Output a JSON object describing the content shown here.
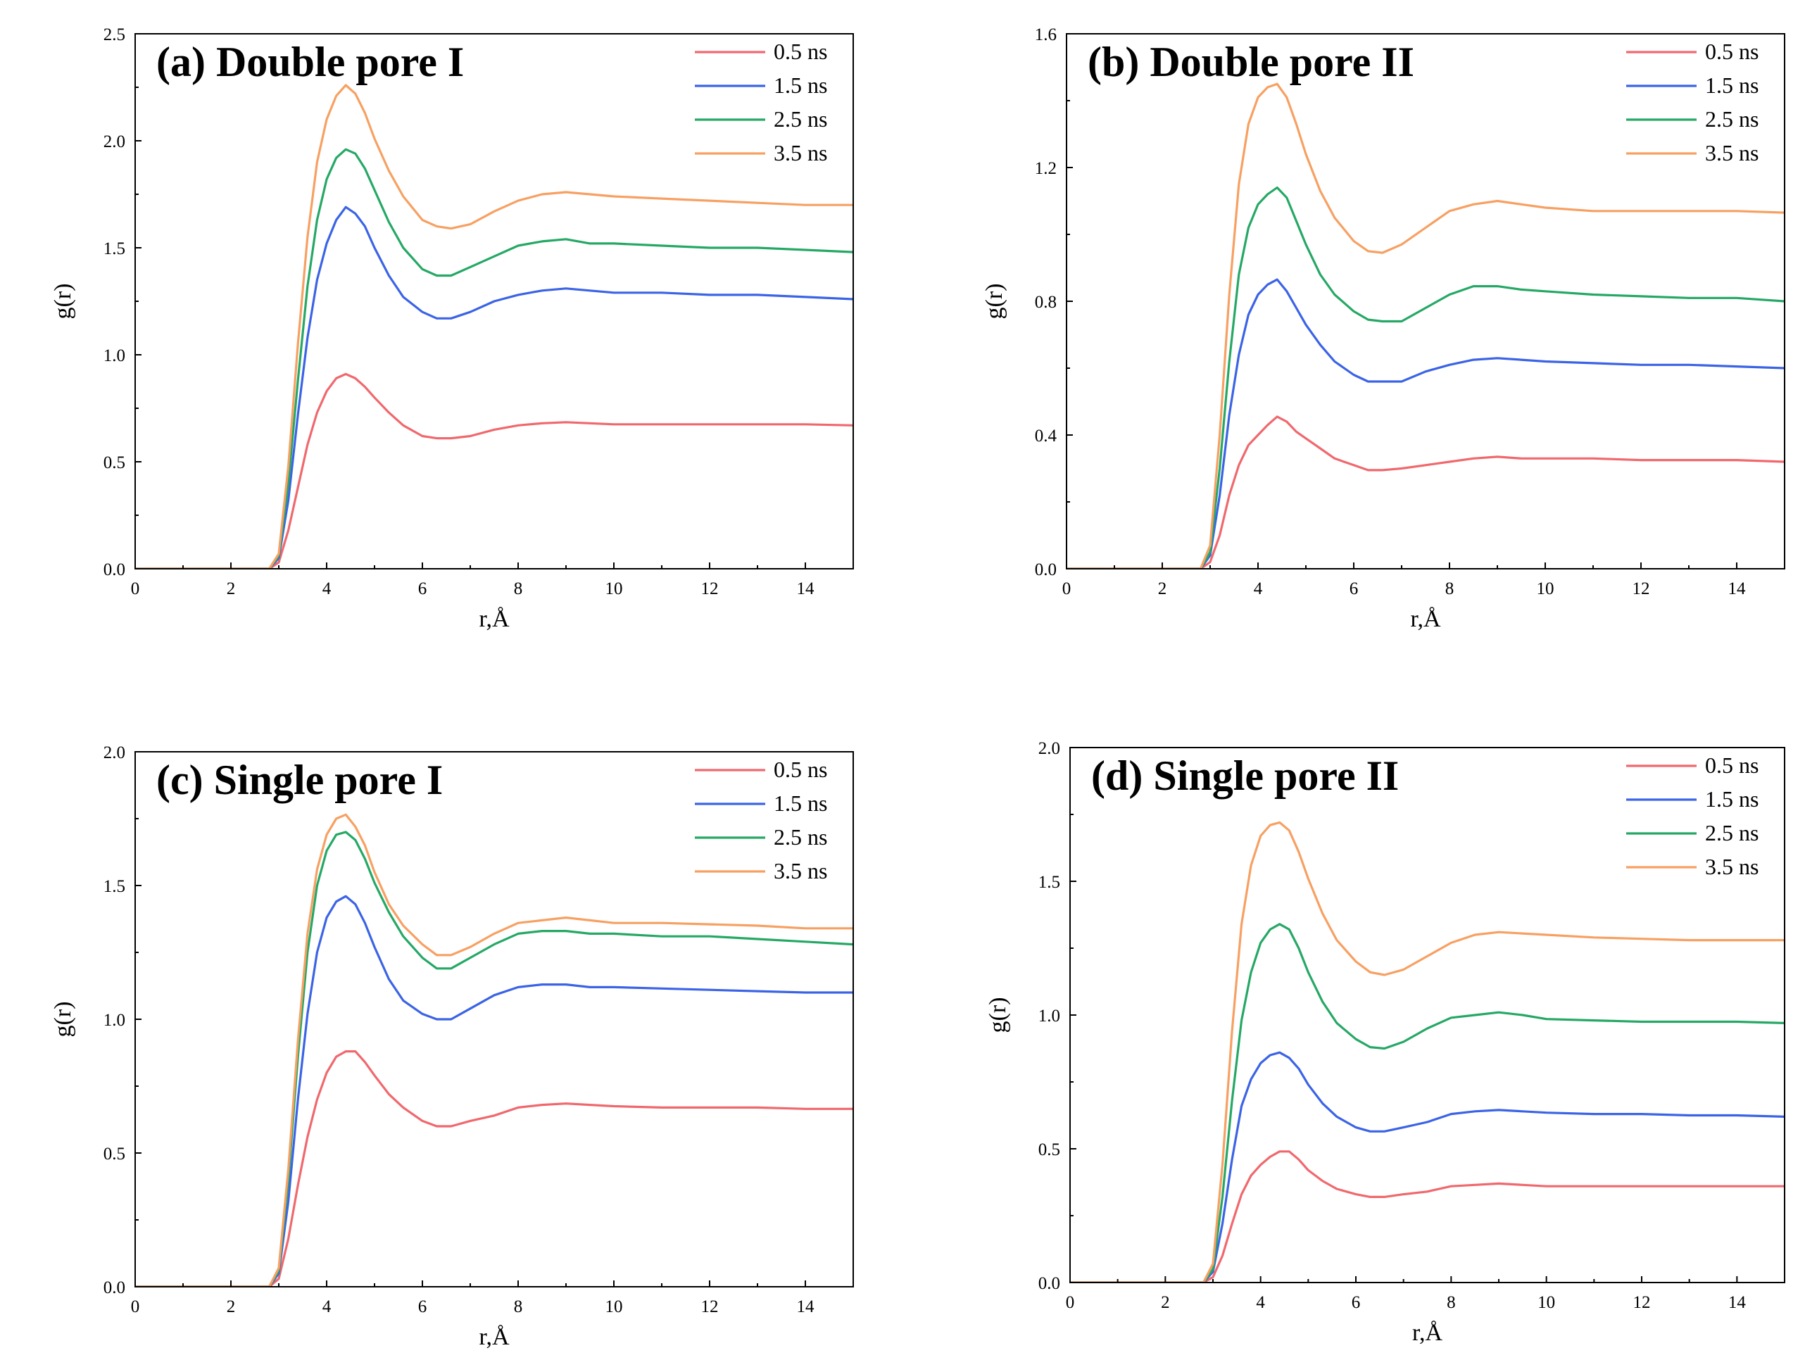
{
  "figure": {
    "series_colors": {
      "0.5 ns": "#f0686d",
      "1.5 ns": "#3b63e6",
      "2.5 ns": "#25a865",
      "3.5 ns": "#f7a062"
    }
  },
  "chart_data": [
    {
      "type": "line",
      "title": "(a) Double pore I",
      "xlabel": "r,Å",
      "ylabel": "g(r)",
      "xlim": [
        0,
        15
      ],
      "ylim": [
        0,
        2.5
      ],
      "xticks": [
        "0",
        "2",
        "4",
        "6",
        "8",
        "10",
        "12",
        "14"
      ],
      "yticks": [
        "0.0",
        "0.5",
        "1.0",
        "1.5",
        "2.0",
        "2.5"
      ],
      "legend": "top-right",
      "x": [
        0,
        1,
        2,
        2.8,
        3.0,
        3.2,
        3.4,
        3.6,
        3.8,
        4.0,
        4.2,
        4.4,
        4.6,
        4.8,
        5.0,
        5.3,
        5.6,
        6.0,
        6.3,
        6.6,
        7.0,
        7.5,
        8.0,
        8.5,
        9.0,
        9.5,
        10,
        11,
        12,
        13,
        14,
        15
      ],
      "series": [
        {
          "name": "0.5 ns",
          "values": [
            0,
            0,
            0,
            0,
            0.03,
            0.18,
            0.38,
            0.58,
            0.73,
            0.83,
            0.89,
            0.91,
            0.89,
            0.85,
            0.8,
            0.73,
            0.67,
            0.62,
            0.61,
            0.61,
            0.62,
            0.65,
            0.67,
            0.68,
            0.685,
            0.68,
            0.675,
            0.675,
            0.675,
            0.675,
            0.675,
            0.67
          ]
        },
        {
          "name": "1.5 ns",
          "values": [
            0,
            0,
            0,
            0,
            0.05,
            0.32,
            0.72,
            1.08,
            1.35,
            1.52,
            1.63,
            1.69,
            1.66,
            1.6,
            1.5,
            1.37,
            1.27,
            1.2,
            1.17,
            1.17,
            1.2,
            1.25,
            1.28,
            1.3,
            1.31,
            1.3,
            1.29,
            1.29,
            1.28,
            1.28,
            1.27,
            1.26
          ]
        },
        {
          "name": "2.5 ns",
          "values": [
            0,
            0,
            0,
            0,
            0.06,
            0.4,
            0.88,
            1.32,
            1.63,
            1.82,
            1.92,
            1.96,
            1.94,
            1.87,
            1.77,
            1.62,
            1.5,
            1.4,
            1.37,
            1.37,
            1.41,
            1.46,
            1.51,
            1.53,
            1.54,
            1.52,
            1.52,
            1.51,
            1.5,
            1.5,
            1.49,
            1.48
          ]
        },
        {
          "name": "3.5 ns",
          "values": [
            0,
            0,
            0,
            0,
            0.07,
            0.48,
            1.05,
            1.55,
            1.9,
            2.1,
            2.21,
            2.26,
            2.22,
            2.13,
            2.01,
            1.86,
            1.74,
            1.63,
            1.6,
            1.59,
            1.61,
            1.67,
            1.72,
            1.75,
            1.76,
            1.75,
            1.74,
            1.73,
            1.72,
            1.71,
            1.7,
            1.7
          ]
        }
      ]
    },
    {
      "type": "line",
      "title": "(b) Double pore II",
      "xlabel": "r,Å",
      "ylabel": "g(r)",
      "xlim": [
        0,
        15
      ],
      "ylim": [
        0,
        1.6
      ],
      "xticks": [
        "0",
        "2",
        "4",
        "6",
        "8",
        "10",
        "12",
        "14"
      ],
      "yticks": [
        "0.0",
        "0.4",
        "0.8",
        "1.2",
        "1.6"
      ],
      "legend": "top-right",
      "x": [
        0,
        1,
        2,
        2.8,
        3.0,
        3.2,
        3.4,
        3.6,
        3.8,
        4.0,
        4.2,
        4.4,
        4.6,
        4.8,
        5.0,
        5.3,
        5.6,
        6.0,
        6.3,
        6.6,
        7.0,
        7.5,
        8.0,
        8.5,
        9.0,
        9.5,
        10,
        11,
        12,
        13,
        14,
        15
      ],
      "series": [
        {
          "name": "0.5 ns",
          "values": [
            0,
            0,
            0,
            0,
            0.02,
            0.1,
            0.22,
            0.31,
            0.37,
            0.4,
            0.43,
            0.455,
            0.44,
            0.41,
            0.39,
            0.36,
            0.33,
            0.31,
            0.295,
            0.295,
            0.3,
            0.31,
            0.32,
            0.33,
            0.335,
            0.33,
            0.33,
            0.33,
            0.325,
            0.325,
            0.325,
            0.32
          ]
        },
        {
          "name": "1.5 ns",
          "values": [
            0,
            0,
            0,
            0,
            0.04,
            0.22,
            0.46,
            0.64,
            0.76,
            0.82,
            0.85,
            0.865,
            0.83,
            0.78,
            0.73,
            0.67,
            0.62,
            0.58,
            0.56,
            0.56,
            0.56,
            0.59,
            0.61,
            0.625,
            0.63,
            0.625,
            0.62,
            0.615,
            0.61,
            0.61,
            0.605,
            0.6
          ]
        },
        {
          "name": "2.5 ns",
          "values": [
            0,
            0,
            0,
            0,
            0.05,
            0.3,
            0.62,
            0.88,
            1.02,
            1.09,
            1.12,
            1.14,
            1.11,
            1.04,
            0.97,
            0.88,
            0.82,
            0.77,
            0.745,
            0.74,
            0.74,
            0.78,
            0.82,
            0.845,
            0.845,
            0.835,
            0.83,
            0.82,
            0.815,
            0.81,
            0.81,
            0.8
          ]
        },
        {
          "name": "3.5 ns",
          "values": [
            0,
            0,
            0,
            0,
            0.07,
            0.4,
            0.82,
            1.15,
            1.33,
            1.41,
            1.44,
            1.45,
            1.41,
            1.33,
            1.24,
            1.13,
            1.05,
            0.98,
            0.95,
            0.945,
            0.97,
            1.02,
            1.07,
            1.09,
            1.1,
            1.09,
            1.08,
            1.07,
            1.07,
            1.07,
            1.07,
            1.065
          ]
        }
      ]
    },
    {
      "type": "line",
      "title": "(c) Single pore I",
      "xlabel": "r,Å",
      "ylabel": "g(r)",
      "xlim": [
        0,
        15
      ],
      "ylim": [
        0,
        2.0
      ],
      "xticks": [
        "0",
        "2",
        "4",
        "6",
        "8",
        "10",
        "12",
        "14"
      ],
      "yticks": [
        "0.0",
        "0.5",
        "1.0",
        "1.5",
        "2.0"
      ],
      "legend": "top-right",
      "x": [
        0,
        1,
        2,
        2.8,
        3.0,
        3.2,
        3.4,
        3.6,
        3.8,
        4.0,
        4.2,
        4.4,
        4.6,
        4.8,
        5.0,
        5.3,
        5.6,
        6.0,
        6.3,
        6.6,
        7.0,
        7.5,
        8.0,
        8.5,
        9.0,
        9.5,
        10,
        11,
        12,
        13,
        14,
        15
      ],
      "series": [
        {
          "name": "0.5 ns",
          "values": [
            0,
            0,
            0,
            0,
            0.03,
            0.18,
            0.38,
            0.56,
            0.7,
            0.8,
            0.86,
            0.88,
            0.88,
            0.84,
            0.79,
            0.72,
            0.67,
            0.62,
            0.6,
            0.6,
            0.62,
            0.64,
            0.67,
            0.68,
            0.685,
            0.68,
            0.675,
            0.67,
            0.67,
            0.67,
            0.665,
            0.665
          ]
        },
        {
          "name": "1.5 ns",
          "values": [
            0,
            0,
            0,
            0,
            0.05,
            0.32,
            0.7,
            1.02,
            1.25,
            1.38,
            1.44,
            1.46,
            1.43,
            1.36,
            1.27,
            1.15,
            1.07,
            1.02,
            1.0,
            1.0,
            1.04,
            1.09,
            1.12,
            1.13,
            1.13,
            1.12,
            1.12,
            1.115,
            1.11,
            1.105,
            1.1,
            1.1
          ]
        },
        {
          "name": "2.5 ns",
          "values": [
            0,
            0,
            0,
            0,
            0.06,
            0.4,
            0.86,
            1.25,
            1.5,
            1.63,
            1.69,
            1.7,
            1.67,
            1.6,
            1.51,
            1.4,
            1.31,
            1.23,
            1.19,
            1.19,
            1.23,
            1.28,
            1.32,
            1.33,
            1.33,
            1.32,
            1.32,
            1.31,
            1.31,
            1.3,
            1.29,
            1.28
          ]
        },
        {
          "name": "3.5 ns",
          "values": [
            0,
            0,
            0,
            0,
            0.07,
            0.44,
            0.92,
            1.32,
            1.56,
            1.69,
            1.75,
            1.765,
            1.72,
            1.65,
            1.55,
            1.43,
            1.35,
            1.28,
            1.24,
            1.24,
            1.27,
            1.32,
            1.36,
            1.37,
            1.38,
            1.37,
            1.36,
            1.36,
            1.355,
            1.35,
            1.34,
            1.34
          ]
        }
      ]
    },
    {
      "type": "line",
      "title": "(d) Single pore II",
      "xlabel": "r,Å",
      "ylabel": "g(r)",
      "xlim": [
        0,
        15
      ],
      "ylim": [
        0,
        2.0
      ],
      "xticks": [
        "0",
        "2",
        "4",
        "6",
        "8",
        "10",
        "12",
        "14"
      ],
      "yticks": [
        "0.0",
        "0.5",
        "1.0",
        "1.5",
        "2.0"
      ],
      "legend": "top-right",
      "x": [
        0,
        1,
        2,
        2.8,
        3.0,
        3.2,
        3.4,
        3.6,
        3.8,
        4.0,
        4.2,
        4.4,
        4.6,
        4.8,
        5.0,
        5.3,
        5.6,
        6.0,
        6.3,
        6.6,
        7.0,
        7.5,
        8.0,
        8.5,
        9.0,
        9.5,
        10,
        11,
        12,
        13,
        14,
        15
      ],
      "series": [
        {
          "name": "0.5 ns",
          "values": [
            0,
            0,
            0,
            0,
            0.02,
            0.1,
            0.22,
            0.33,
            0.4,
            0.44,
            0.47,
            0.49,
            0.49,
            0.46,
            0.42,
            0.38,
            0.35,
            0.33,
            0.32,
            0.32,
            0.33,
            0.34,
            0.36,
            0.365,
            0.37,
            0.365,
            0.36,
            0.36,
            0.36,
            0.36,
            0.36,
            0.36
          ]
        },
        {
          "name": "1.5 ns",
          "values": [
            0,
            0,
            0,
            0,
            0.04,
            0.22,
            0.46,
            0.66,
            0.76,
            0.82,
            0.85,
            0.86,
            0.84,
            0.8,
            0.74,
            0.67,
            0.62,
            0.58,
            0.565,
            0.565,
            0.58,
            0.6,
            0.63,
            0.64,
            0.645,
            0.64,
            0.635,
            0.63,
            0.63,
            0.625,
            0.625,
            0.62
          ]
        },
        {
          "name": "2.5 ns",
          "values": [
            0,
            0,
            0,
            0,
            0.05,
            0.32,
            0.68,
            0.98,
            1.16,
            1.27,
            1.32,
            1.34,
            1.32,
            1.25,
            1.16,
            1.05,
            0.97,
            0.91,
            0.88,
            0.875,
            0.9,
            0.95,
            0.99,
            1.0,
            1.01,
            1.0,
            0.985,
            0.98,
            0.975,
            0.975,
            0.975,
            0.97
          ]
        },
        {
          "name": "3.5 ns",
          "values": [
            0,
            0,
            0,
            0,
            0.07,
            0.44,
            0.94,
            1.34,
            1.56,
            1.67,
            1.71,
            1.72,
            1.69,
            1.61,
            1.51,
            1.38,
            1.28,
            1.2,
            1.16,
            1.15,
            1.17,
            1.22,
            1.27,
            1.3,
            1.31,
            1.305,
            1.3,
            1.29,
            1.285,
            1.28,
            1.28,
            1.28
          ]
        }
      ]
    }
  ]
}
